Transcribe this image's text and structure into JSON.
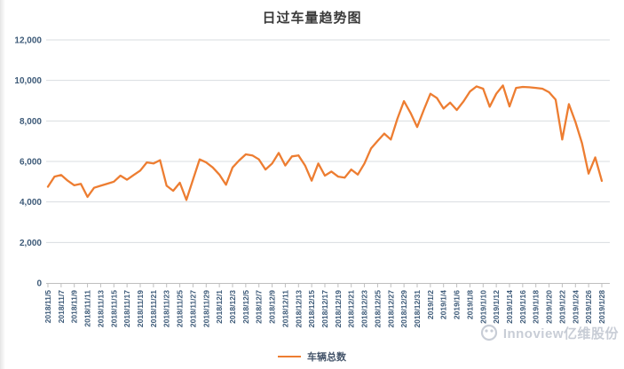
{
  "title": "日过车量趋势图",
  "legend": {
    "series_label": "车辆总数"
  },
  "watermark": {
    "brand": "Innoview亿维股份"
  },
  "colors": {
    "line": "#ED7D31",
    "axis_label": "#3D5A78",
    "gridline": "#DADDE0",
    "axis_line": "#BFBFBF",
    "title": "#3A3A3A",
    "watermark": "#C6CBD4"
  },
  "chart_data": {
    "type": "line",
    "title": "日过车量趋势图",
    "grid": "horizontal",
    "legend_position": "bottom",
    "ylim": [
      0,
      12000
    ],
    "y_ticks": [
      0,
      2000,
      4000,
      6000,
      8000,
      10000,
      12000
    ],
    "y_tick_labels": [
      "0",
      "2,000",
      "4,000",
      "6,000",
      "8,000",
      "10,000",
      "12,000"
    ],
    "x_tick_every": 2,
    "x": [
      "2018/11/5",
      "2018/11/6",
      "2018/11/7",
      "2018/11/8",
      "2018/11/9",
      "2018/11/10",
      "2018/11/11",
      "2018/11/12",
      "2018/11/13",
      "2018/11/14",
      "2018/11/15",
      "2018/11/16",
      "2018/11/17",
      "2018/11/18",
      "2018/11/19",
      "2018/11/20",
      "2018/11/21",
      "2018/11/22",
      "2018/11/23",
      "2018/11/24",
      "2018/11/25",
      "2018/11/26",
      "2018/11/27",
      "2018/11/28",
      "2018/11/29",
      "2018/11/30",
      "2018/12/1",
      "2018/12/2",
      "2018/12/3",
      "2018/12/4",
      "2018/12/5",
      "2018/12/6",
      "2018/12/7",
      "2018/12/8",
      "2018/12/9",
      "2018/12/10",
      "2018/12/11",
      "2018/12/12",
      "2018/12/13",
      "2018/12/14",
      "2018/12/15",
      "2018/12/16",
      "2018/12/17",
      "2018/12/18",
      "2018/12/19",
      "2018/12/20",
      "2018/12/21",
      "2018/12/22",
      "2018/12/23",
      "2018/12/24",
      "2018/12/25",
      "2018/12/26",
      "2018/12/27",
      "2018/12/28",
      "2018/12/29",
      "2018/12/30",
      "2018/12/31",
      "2019/1/1",
      "2019/1/2",
      "2019/1/3",
      "2019/1/4",
      "2019/1/5",
      "2019/1/6",
      "2019/1/7",
      "2019/1/8",
      "2019/1/9",
      "2019/1/10",
      "2019/1/11",
      "2019/1/12",
      "2019/1/13",
      "2019/1/14",
      "2019/1/15",
      "2019/1/16",
      "2019/1/17",
      "2019/1/18",
      "2019/1/19",
      "2019/1/20",
      "2019/1/21",
      "2019/1/22",
      "2019/1/23",
      "2019/1/24",
      "2019/1/25",
      "2019/1/26",
      "2019/1/27",
      "2019/1/28"
    ],
    "series": [
      {
        "name": "车辆总数",
        "values": [
          4750,
          5250,
          5330,
          5050,
          4820,
          4890,
          4250,
          4700,
          4800,
          4900,
          5000,
          5300,
          5100,
          5330,
          5550,
          5950,
          5900,
          6060,
          4800,
          4550,
          4950,
          4100,
          5100,
          6100,
          5950,
          5700,
          5350,
          4850,
          5700,
          6050,
          6350,
          6300,
          6100,
          5600,
          5900,
          6420,
          5800,
          6250,
          6300,
          5800,
          5050,
          5900,
          5300,
          5500,
          5250,
          5200,
          5600,
          5350,
          5900,
          6640,
          7010,
          7375,
          7080,
          8105,
          8980,
          8390,
          7700,
          8540,
          9340,
          9125,
          8610,
          8905,
          8540,
          8950,
          9450,
          9705,
          9590,
          8700,
          9340,
          9750,
          8715,
          9630,
          9680,
          9660,
          9630,
          9590,
          9415,
          9050,
          7080,
          8830,
          7950,
          6900,
          5400,
          6200,
          5040
        ]
      }
    ]
  }
}
